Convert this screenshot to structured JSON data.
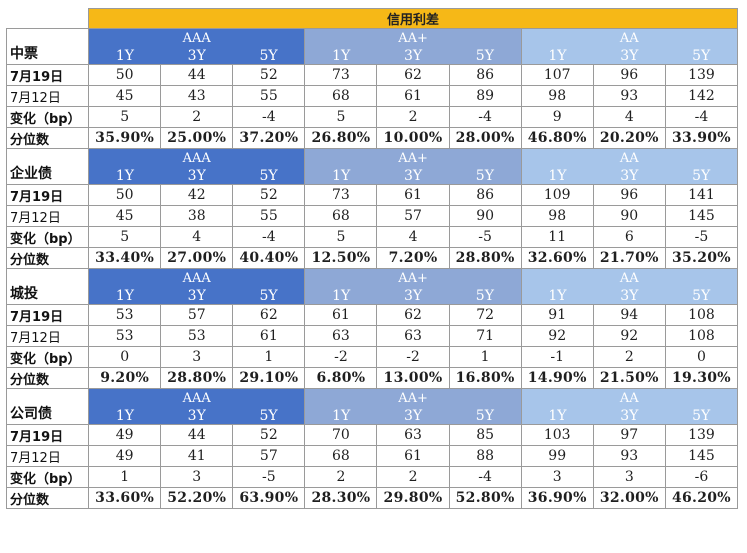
{
  "title": "信用利差",
  "grades": [
    "AAA",
    "AA+",
    "AA"
  ],
  "tenors": [
    "1Y",
    "3Y",
    "5Y"
  ],
  "row_labels": {
    "current": "7月19日",
    "previous": "7月12日",
    "change": "变化（bp）",
    "percentile": "分位数"
  },
  "colors": {
    "title_bg": "#f6b817",
    "aaa_header": "#4773c8",
    "aa_plus_header": "#8ea8d6",
    "aa_header": "#a7c5ea"
  },
  "sections": [
    {
      "name": "中票",
      "current": [
        "50",
        "44",
        "52",
        "73",
        "62",
        "86",
        "107",
        "96",
        "139"
      ],
      "previous": [
        "45",
        "43",
        "55",
        "68",
        "61",
        "89",
        "98",
        "93",
        "142"
      ],
      "change": [
        "5",
        "2",
        "-4",
        "5",
        "2",
        "-4",
        "9",
        "4",
        "-4"
      ],
      "percentile": [
        "35.90%",
        "25.00%",
        "37.20%",
        "26.80%",
        "10.00%",
        "28.00%",
        "46.80%",
        "20.20%",
        "33.90%"
      ]
    },
    {
      "name": "企业债",
      "current": [
        "50",
        "42",
        "52",
        "73",
        "61",
        "86",
        "109",
        "96",
        "141"
      ],
      "previous": [
        "45",
        "38",
        "55",
        "68",
        "57",
        "90",
        "98",
        "90",
        "145"
      ],
      "change": [
        "5",
        "4",
        "-4",
        "5",
        "4",
        "-5",
        "11",
        "6",
        "-5"
      ],
      "percentile": [
        "33.40%",
        "27.00%",
        "40.40%",
        "12.50%",
        "7.20%",
        "28.80%",
        "32.60%",
        "21.70%",
        "35.20%"
      ]
    },
    {
      "name": "城投",
      "current": [
        "53",
        "57",
        "62",
        "61",
        "62",
        "72",
        "91",
        "94",
        "108"
      ],
      "previous": [
        "53",
        "53",
        "61",
        "63",
        "63",
        "71",
        "92",
        "92",
        "108"
      ],
      "change": [
        "0",
        "3",
        "1",
        "-2",
        "-2",
        "1",
        "-1",
        "2",
        "0"
      ],
      "percentile": [
        "9.20%",
        "28.80%",
        "29.10%",
        "6.80%",
        "13.00%",
        "16.80%",
        "14.90%",
        "21.50%",
        "19.30%"
      ]
    },
    {
      "name": "公司债",
      "current": [
        "49",
        "44",
        "52",
        "70",
        "63",
        "85",
        "103",
        "97",
        "139"
      ],
      "previous": [
        "49",
        "41",
        "57",
        "68",
        "61",
        "88",
        "99",
        "93",
        "145"
      ],
      "change": [
        "1",
        "3",
        "-5",
        "2",
        "2",
        "-4",
        "3",
        "3",
        "-6"
      ],
      "percentile": [
        "33.60%",
        "52.20%",
        "63.90%",
        "28.30%",
        "29.80%",
        "52.80%",
        "36.90%",
        "32.00%",
        "46.20%"
      ]
    }
  ]
}
